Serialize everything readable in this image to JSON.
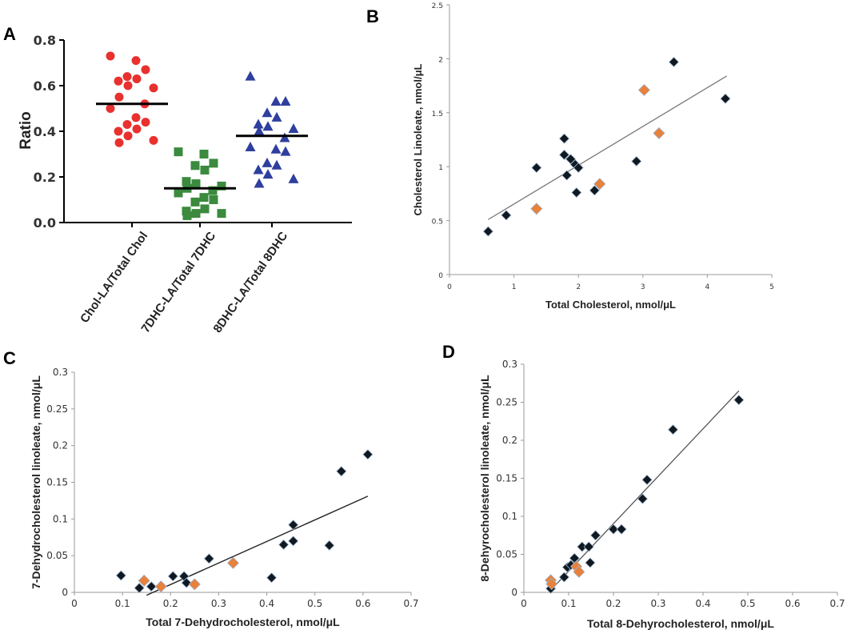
{
  "chart_data": [
    {
      "panel": "A",
      "type": "scatter",
      "ylabel": "Ratio",
      "ylim": [
        0,
        0.8
      ],
      "yticks": [
        "0.0",
        "0.2",
        "0.4",
        "0.6",
        "0.8"
      ],
      "categories": [
        "Chol-LA/Total Chol",
        "7DHC-LA/Total 7DHC",
        "8DHC-LA/Total 8DHC"
      ],
      "series": [
        {
          "name": "Chol-LA/Total Chol",
          "color": "#e8312f",
          "marker": "circle",
          "median": 0.52,
          "values": [
            0.73,
            0.71,
            0.67,
            0.64,
            0.63,
            0.62,
            0.6,
            0.59,
            0.55,
            0.52,
            0.5,
            0.46,
            0.44,
            0.43,
            0.41,
            0.4,
            0.38,
            0.36,
            0.35
          ]
        },
        {
          "name": "7DHC-LA/Total 7DHC",
          "color": "#3b8a3e",
          "marker": "square",
          "median": 0.15,
          "values": [
            0.31,
            0.3,
            0.26,
            0.25,
            0.23,
            0.18,
            0.17,
            0.16,
            0.15,
            0.14,
            0.13,
            0.11,
            0.1,
            0.09,
            0.06,
            0.05,
            0.04,
            0.04,
            0.03
          ]
        },
        {
          "name": "8DHC-LA/Total 8DHC",
          "color": "#2e3f9e",
          "marker": "triangle",
          "median": 0.38,
          "values": [
            0.64,
            0.53,
            0.53,
            0.48,
            0.46,
            0.43,
            0.42,
            0.41,
            0.4,
            0.37,
            0.33,
            0.32,
            0.31,
            0.26,
            0.25,
            0.23,
            0.21,
            0.19,
            0.17
          ]
        }
      ]
    },
    {
      "panel": "B",
      "type": "scatter",
      "xlabel": "Total Cholesterol, nmol/μL",
      "ylabel": "Cholesterol Linoleate, nmol/μL",
      "xlim": [
        0,
        5
      ],
      "ylim": [
        0,
        2.5
      ],
      "xticks": [
        "0",
        "1",
        "2",
        "3",
        "4",
        "5"
      ],
      "yticks": [
        "0",
        "0.5",
        "1",
        "1.5",
        "2",
        "2.5"
      ],
      "series": [
        {
          "name": "black",
          "color": "#101820",
          "marker": "diamond",
          "points": [
            [
              0.6,
              0.4
            ],
            [
              0.88,
              0.55
            ],
            [
              1.35,
              0.99
            ],
            [
              1.78,
              1.26
            ],
            [
              1.78,
              1.11
            ],
            [
              1.82,
              0.92
            ],
            [
              1.88,
              1.07
            ],
            [
              1.95,
              1.02
            ],
            [
              1.97,
              0.76
            ],
            [
              2.0,
              0.99
            ],
            [
              2.25,
              0.78
            ],
            [
              2.9,
              1.05
            ],
            [
              3.48,
              1.97
            ],
            [
              4.28,
              1.63
            ]
          ]
        },
        {
          "name": "orange",
          "color": "#e8813a",
          "marker": "diamond",
          "points": [
            [
              1.35,
              0.61
            ],
            [
              2.33,
              0.84
            ],
            [
              3.02,
              1.71
            ],
            [
              3.25,
              1.31
            ]
          ]
        }
      ],
      "trendline": {
        "x": [
          0.6,
          4.3
        ],
        "y": [
          0.51,
          1.84
        ]
      }
    },
    {
      "panel": "C",
      "type": "scatter",
      "xlabel": "Total 7-Dehydrocholesterol, nmol/μL",
      "ylabel": "7-Dehydrocholesterol linoleate, nmol/μL",
      "xlim": [
        0,
        0.7
      ],
      "ylim": [
        0,
        0.3
      ],
      "xticks": [
        "0",
        "0.1",
        "0.2",
        "0.3",
        "0.4",
        "0.5",
        "0.6",
        "0.7"
      ],
      "yticks": [
        "0",
        "0.05",
        "0.1",
        "0.15",
        "0.2",
        "0.25",
        "0.3"
      ],
      "series": [
        {
          "name": "black",
          "color": "#101820",
          "marker": "diamond",
          "points": [
            [
              0.097,
              0.023
            ],
            [
              0.135,
              0.006
            ],
            [
              0.16,
              0.008
            ],
            [
              0.205,
              0.022
            ],
            [
              0.228,
              0.022
            ],
            [
              0.233,
              0.013
            ],
            [
              0.28,
              0.046
            ],
            [
              0.41,
              0.02
            ],
            [
              0.435,
              0.065
            ],
            [
              0.455,
              0.07
            ],
            [
              0.455,
              0.092
            ],
            [
              0.53,
              0.064
            ],
            [
              0.555,
              0.165
            ],
            [
              0.61,
              0.188
            ]
          ]
        },
        {
          "name": "orange",
          "color": "#e8813a",
          "marker": "diamond",
          "points": [
            [
              0.145,
              0.016
            ],
            [
              0.18,
              0.008
            ],
            [
              0.25,
              0.011
            ],
            [
              0.33,
              0.04
            ]
          ]
        }
      ],
      "trendline": {
        "x": [
          0.15,
          0.61
        ],
        "y": [
          -0.004,
          0.131
        ]
      }
    },
    {
      "panel": "D",
      "type": "scatter",
      "xlabel": "Total 8-Dehyrocholesterol, nmol/μL",
      "ylabel": "8-Dehyrocholesterol linoleate, nmol/μL",
      "xlim": [
        0,
        0.7
      ],
      "ylim": [
        0,
        0.3
      ],
      "xticks": [
        "0",
        "0.1",
        "0.2",
        "0.3",
        "0.4",
        "0.5",
        "0.6",
        "0.7"
      ],
      "yticks": [
        "0",
        "0.05",
        "0.1",
        "0.15",
        "0.2",
        "0.25",
        "0.3"
      ],
      "series": [
        {
          "name": "black",
          "color": "#101820",
          "marker": "diamond",
          "points": [
            [
              0.06,
              0.005
            ],
            [
              0.09,
              0.02
            ],
            [
              0.097,
              0.033
            ],
            [
              0.105,
              0.036
            ],
            [
              0.113,
              0.045
            ],
            [
              0.13,
              0.06
            ],
            [
              0.145,
              0.06
            ],
            [
              0.148,
              0.039
            ],
            [
              0.16,
              0.075
            ],
            [
              0.2,
              0.083
            ],
            [
              0.218,
              0.083
            ],
            [
              0.265,
              0.123
            ],
            [
              0.275,
              0.148
            ],
            [
              0.333,
              0.214
            ],
            [
              0.48,
              0.253
            ]
          ]
        },
        {
          "name": "orange",
          "color": "#e8813a",
          "marker": "diamond",
          "points": [
            [
              0.06,
              0.016
            ],
            [
              0.062,
              0.011
            ],
            [
              0.117,
              0.034
            ],
            [
              0.123,
              0.027
            ]
          ]
        }
      ],
      "trendline": {
        "x": [
          0.06,
          0.48
        ],
        "y": [
          0.003,
          0.265
        ]
      }
    }
  ],
  "panel_labels": {
    "A": "A",
    "B": "B",
    "C": "C",
    "D": "D"
  }
}
